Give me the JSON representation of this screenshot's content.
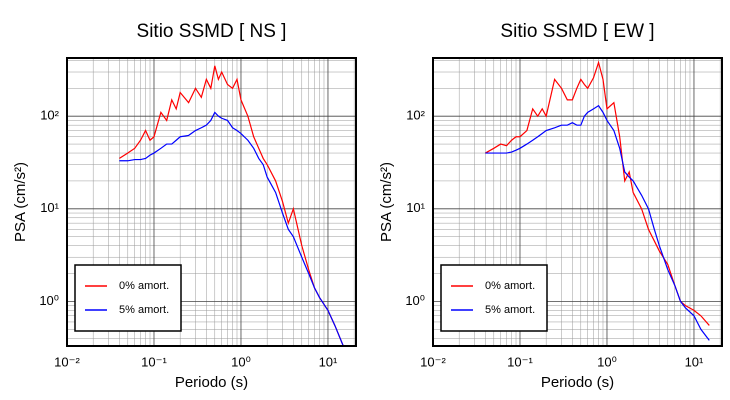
{
  "chart_data": [
    {
      "type": "line",
      "title": "Sitio SSMD [ NS ]",
      "x_label": "Periodo (s)",
      "y_label": "PSA (cm/s²)",
      "x_scale": "log",
      "y_scale": "log",
      "grid": true,
      "legend": "lower left",
      "xlim": [
        0.01,
        21
      ],
      "ylim": [
        0.33,
        425
      ],
      "xticks": [
        {
          "value": 0.01,
          "label": "10⁻²"
        },
        {
          "value": 0.1,
          "label": "10⁻¹"
        },
        {
          "value": 1,
          "label": "10⁰"
        },
        {
          "value": 10,
          "label": "10¹"
        }
      ],
      "yticks": [
        {
          "value": 1,
          "label": "10⁰"
        },
        {
          "value": 10,
          "label": "10¹"
        },
        {
          "value": 100,
          "label": "10²"
        }
      ],
      "x": [
        0.04,
        0.05,
        0.06,
        0.07,
        0.08,
        0.09,
        0.1,
        0.12,
        0.14,
        0.16,
        0.18,
        0.2,
        0.25,
        0.3,
        0.35,
        0.4,
        0.45,
        0.5,
        0.55,
        0.6,
        0.7,
        0.8,
        0.9,
        1.0,
        1.2,
        1.4,
        1.6,
        1.8,
        2.0,
        2.5,
        3,
        3.5,
        4,
        5,
        6,
        7,
        8,
        10,
        12,
        15
      ],
      "series": [
        {
          "name": "0% amort.",
          "color": "#ff0000",
          "values": [
            35,
            40,
            45,
            55,
            70,
            55,
            60,
            110,
            90,
            150,
            120,
            180,
            140,
            200,
            160,
            250,
            200,
            350,
            250,
            300,
            220,
            200,
            250,
            150,
            100,
            60,
            45,
            35,
            30,
            20,
            12,
            7,
            10,
            4,
            2.2,
            1.4,
            1.1,
            0.8,
            0.55,
            0.33
          ]
        },
        {
          "name": "5% amort.",
          "color": "#0000ff",
          "values": [
            33,
            33,
            34,
            34,
            35,
            38,
            40,
            45,
            50,
            50,
            55,
            60,
            62,
            70,
            75,
            80,
            90,
            110,
            100,
            95,
            90,
            75,
            70,
            65,
            55,
            45,
            35,
            30,
            22,
            15,
            9,
            6,
            5,
            3,
            2,
            1.4,
            1.1,
            0.8,
            0.55,
            0.33
          ]
        }
      ]
    },
    {
      "type": "line",
      "title": "Sitio SSMD [ EW ]",
      "x_label": "Periodo (s)",
      "y_label": "PSA (cm/s²)",
      "x_scale": "log",
      "y_scale": "log",
      "grid": true,
      "legend": "lower left",
      "xlim": [
        0.01,
        21
      ],
      "ylim": [
        0.33,
        425
      ],
      "xticks": [
        {
          "value": 0.01,
          "label": "10⁻²"
        },
        {
          "value": 0.1,
          "label": "10⁻¹"
        },
        {
          "value": 1,
          "label": "10⁰"
        },
        {
          "value": 10,
          "label": "10¹"
        }
      ],
      "yticks": [
        {
          "value": 1,
          "label": "10⁰"
        },
        {
          "value": 10,
          "label": "10¹"
        },
        {
          "value": 100,
          "label": "10²"
        }
      ],
      "x": [
        0.04,
        0.05,
        0.06,
        0.07,
        0.08,
        0.09,
        0.1,
        0.12,
        0.14,
        0.16,
        0.18,
        0.2,
        0.25,
        0.3,
        0.35,
        0.4,
        0.45,
        0.5,
        0.55,
        0.6,
        0.7,
        0.8,
        0.9,
        1.0,
        1.2,
        1.4,
        1.6,
        1.8,
        2.0,
        2.5,
        3,
        3.5,
        4,
        5,
        6,
        7,
        8,
        10,
        12,
        15
      ],
      "series": [
        {
          "name": "0% amort.",
          "color": "#ff0000",
          "values": [
            40,
            45,
            50,
            48,
            55,
            60,
            60,
            70,
            120,
            100,
            120,
            100,
            250,
            200,
            150,
            150,
            200,
            250,
            220,
            200,
            260,
            380,
            250,
            120,
            140,
            60,
            20,
            25,
            15,
            10,
            6,
            4.5,
            3.5,
            2.5,
            1.5,
            1.0,
            0.9,
            0.8,
            0.7,
            0.55
          ]
        },
        {
          "name": "5% amort.",
          "color": "#0000ff",
          "values": [
            40,
            40,
            40,
            40,
            41,
            43,
            45,
            50,
            55,
            60,
            65,
            70,
            75,
            80,
            80,
            85,
            80,
            80,
            100,
            110,
            120,
            130,
            110,
            90,
            70,
            45,
            25,
            22,
            20,
            14,
            10,
            6,
            4,
            2.2,
            1.5,
            1.0,
            0.85,
            0.7,
            0.5,
            0.38
          ]
        }
      ]
    }
  ]
}
